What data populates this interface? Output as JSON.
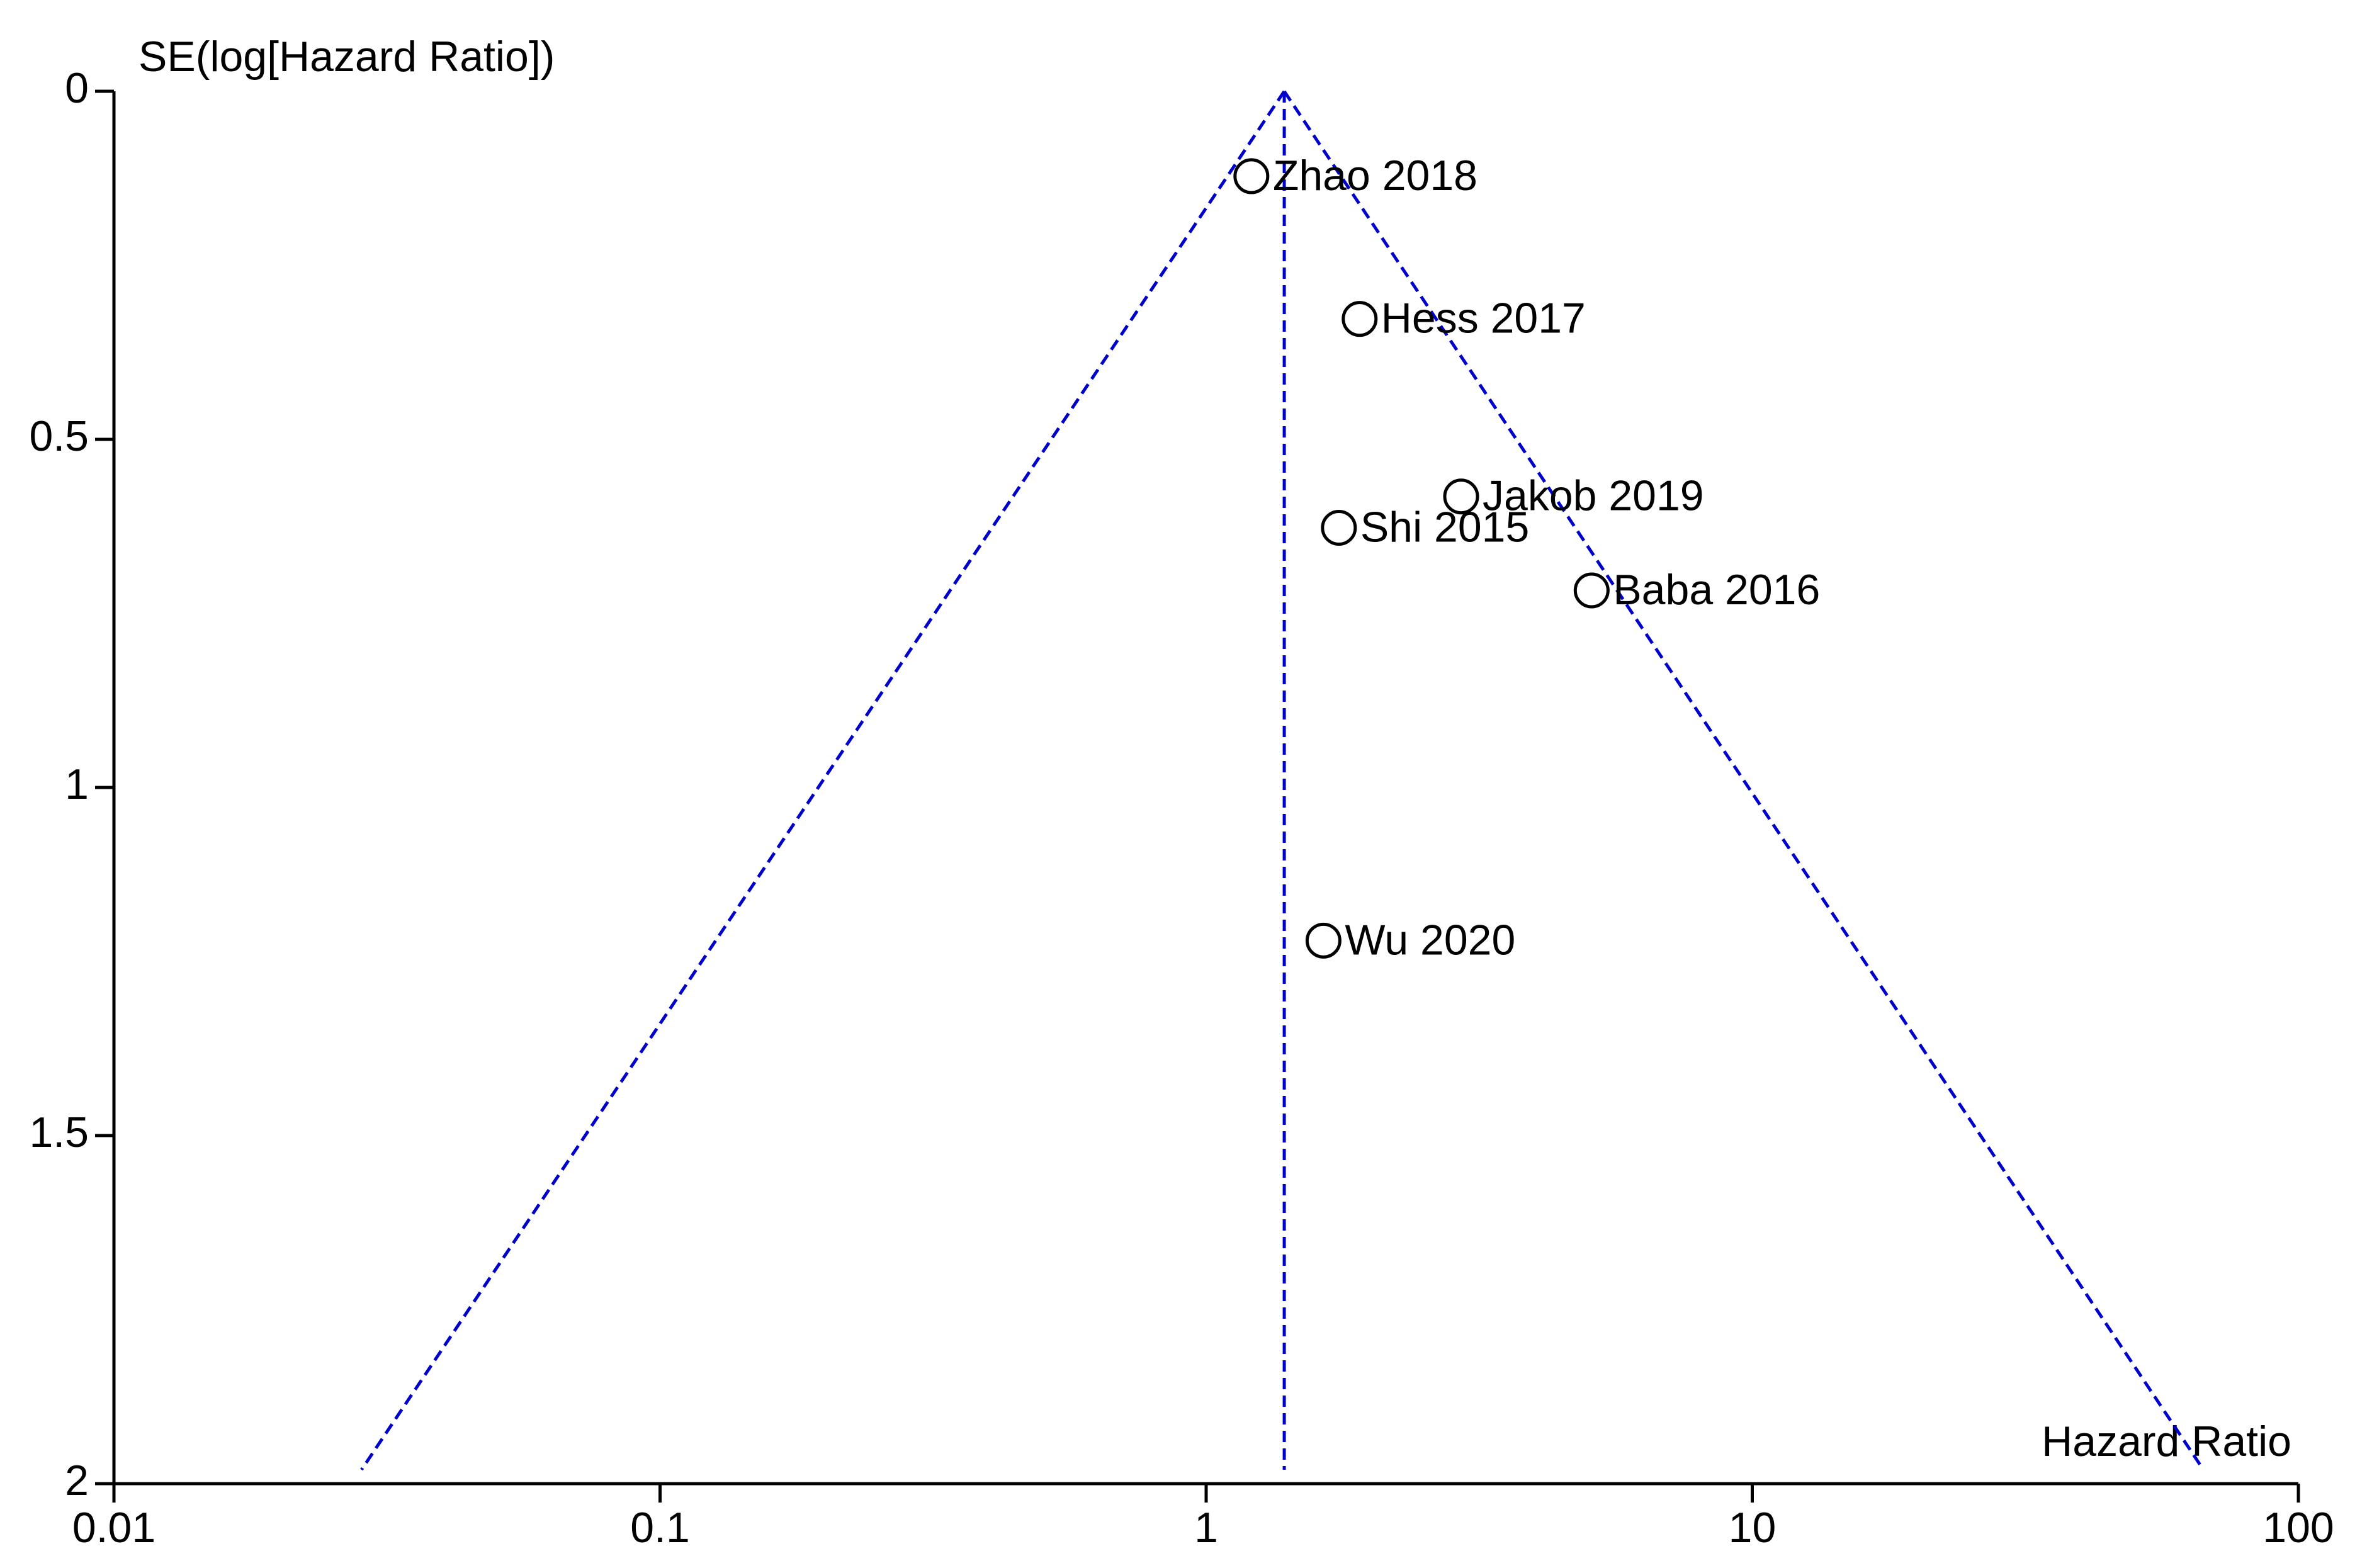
{
  "chart_data": {
    "type": "funnel",
    "y_label": "SE(log[Hazard Ratio])",
    "x_label": "Hazard Ratio",
    "x_log": true,
    "y_inverted": true,
    "xlim": [
      0.01,
      100
    ],
    "xticks": [
      0.01,
      0.1,
      1,
      10,
      100
    ],
    "ylim": [
      0,
      2
    ],
    "yticks": [
      0,
      0.5,
      1,
      1.5,
      2
    ],
    "labels": [
      "Zhao 2018",
      "Hess  2017",
      "Jakob 2019",
      "Shi 2015",
      "Baba 2016",
      "Wu  2020"
    ],
    "x": [
      1.21,
      1.91,
      2.93,
      1.75,
      5.08,
      1.64
    ],
    "y": [
      0.122,
      0.327,
      0.582,
      0.627,
      0.717,
      1.22
    ],
    "marker_color": "#000000",
    "reference_line": {
      "x": 1.39,
      "se_max": 1.98
    },
    "funnel_limits": {
      "lower": 0.0284,
      "upper": 67
    },
    "line_color": "#0000cc"
  }
}
